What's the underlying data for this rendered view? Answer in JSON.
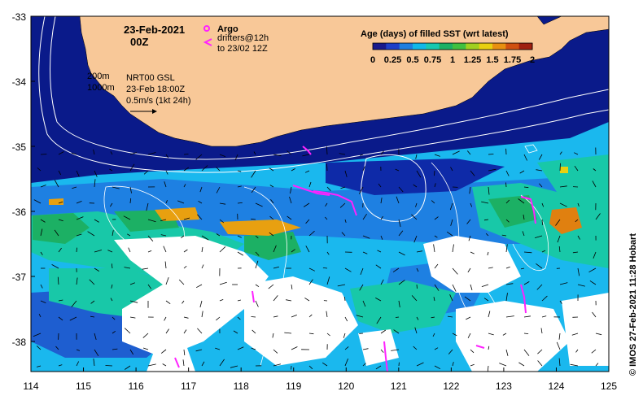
{
  "header": {
    "date": "23-Feb-2021",
    "time": "00Z"
  },
  "legend_argo": {
    "argo_label": "Argo",
    "drifters_line1": "drifters@12h",
    "drifters_line2": "to 23/02 12Z"
  },
  "contours": {
    "label_200": "200m",
    "label_1000": "1000m"
  },
  "product": {
    "line1": "NRT00 GSL",
    "line2": "23-Feb 18:00Z",
    "scale_label": "0.5m/s (1kt 24h)"
  },
  "colorbar": {
    "title": "Age (days) of filled SST (wrt latest)",
    "ticks": [
      "0",
      "0.25",
      "0.5",
      "0.75",
      "1",
      "1.25",
      "1.5",
      "1.75",
      "2"
    ],
    "colors": [
      "#1a1a8c",
      "#1f3fc8",
      "#1e7ee0",
      "#10b8e8",
      "#18c8b0",
      "#1cb064",
      "#40c040",
      "#a0d020",
      "#e8d010",
      "#e89010",
      "#d05010",
      "#a02010"
    ]
  },
  "axes": {
    "lon_ticks": [
      "114",
      "115",
      "116",
      "117",
      "118",
      "119",
      "120",
      "121",
      "122",
      "123",
      "124",
      "125"
    ],
    "lat_ticks": [
      "-33",
      "-34",
      "-35",
      "-36",
      "-37",
      "-38"
    ]
  },
  "credit": "© IMOS 27-Feb-2021 11:28 Hobart",
  "colors": {
    "land": "#f8c898",
    "deep_blue": "#0a1a8a",
    "argo_magenta": "#ff22ff"
  }
}
